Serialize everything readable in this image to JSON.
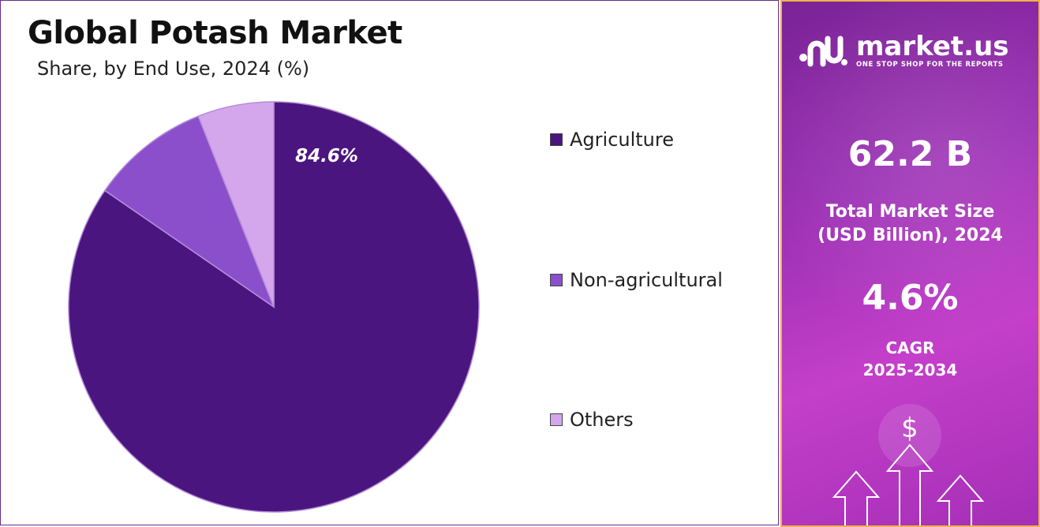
{
  "header": {
    "title": "Global Potash Market",
    "subtitle": "Share, by End Use, 2024 (%)"
  },
  "chart_data": {
    "type": "pie",
    "title": "Global Potash Market",
    "subtitle": "Share, by End Use, 2024 (%)",
    "categories": [
      "Agriculture",
      "Non-agricultural",
      "Others"
    ],
    "values": [
      84.6,
      9.4,
      6.0
    ],
    "labels": [
      "84.6%",
      "",
      ""
    ],
    "colors": [
      "#4b1580",
      "#8b4fcc",
      "#d4a6ec"
    ],
    "legend_position": "right",
    "start_angle_deg": 0,
    "direction": "clockwise"
  },
  "legend": {
    "items": [
      {
        "label": "Agriculture",
        "color": "#4b1580"
      },
      {
        "label": "Non-agricultural",
        "color": "#8b4fcc"
      },
      {
        "label": "Others",
        "color": "#d4a6ec"
      }
    ]
  },
  "side_panel": {
    "brand_name": "market.us",
    "brand_tagline": "ONE STOP SHOP FOR THE REPORTS",
    "market_size_value": "62.2 B",
    "market_size_label_line1": "Total Market Size",
    "market_size_label_line2": "(USD Billion), 2024",
    "cagr_value": "4.6%",
    "cagr_label_line1": "CAGR",
    "cagr_label_line2": "2025-2034",
    "decor_icon": "dollar-growth-arrows-icon",
    "accent_border": "#f0b24a"
  }
}
